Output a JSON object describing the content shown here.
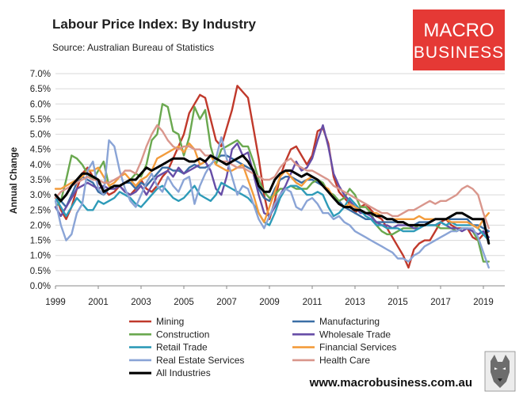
{
  "chart_data": {
    "type": "line",
    "title": "Labour Price Index: By Industry",
    "subtitle": "Source: Australian Bureau of Statistics",
    "ylabel": "Annual Change",
    "xlabel": "",
    "ylim": [
      0,
      7
    ],
    "xlim": [
      1999,
      2020
    ],
    "y_ticks": [
      "0.0%",
      "0.5%",
      "1.0%",
      "1.5%",
      "2.0%",
      "2.5%",
      "3.0%",
      "3.5%",
      "4.0%",
      "4.5%",
      "5.0%",
      "5.5%",
      "6.0%",
      "6.5%",
      "7.0%"
    ],
    "x_ticks": [
      "1999",
      "2001",
      "2003",
      "2005",
      "2007",
      "2009",
      "2011",
      "2013",
      "2015",
      "2017",
      "2019"
    ],
    "x_start": 1999.0,
    "x_step": 0.25,
    "series": [
      {
        "name": "Mining",
        "color": "#c0392b",
        "values": [
          3.0,
          2.5,
          2.2,
          2.6,
          3.2,
          3.7,
          3.9,
          3.6,
          3.4,
          3.2,
          3.0,
          3.1,
          3.3,
          3.1,
          3.0,
          3.2,
          3.5,
          3.2,
          3.1,
          3.3,
          3.6,
          3.8,
          4.2,
          4.6,
          5.0,
          5.7,
          6.0,
          6.3,
          6.2,
          5.5,
          4.8,
          4.6,
          5.2,
          5.8,
          6.6,
          6.4,
          6.2,
          5.2,
          4.2,
          3.0,
          2.2,
          2.8,
          3.6,
          4.1,
          4.5,
          4.6,
          4.3,
          4.0,
          4.3,
          5.1,
          5.2,
          4.7,
          3.6,
          3.1,
          2.9,
          2.7,
          2.4,
          2.6,
          2.7,
          2.5,
          2.3,
          2.2,
          1.9,
          1.6,
          1.3,
          1.0,
          0.6,
          1.2,
          1.4,
          1.5,
          1.5,
          1.8,
          2.1,
          2.2,
          2.0,
          1.9,
          1.9,
          1.9,
          1.6,
          1.5,
          1.7,
          1.8
        ]
      },
      {
        "name": "Manufacturing",
        "color": "#3a6ea5",
        "values": [
          2.9,
          2.8,
          2.6,
          3.0,
          3.4,
          3.6,
          3.5,
          3.4,
          3.1,
          3.0,
          3.2,
          3.3,
          3.3,
          3.4,
          3.4,
          3.2,
          3.4,
          3.3,
          3.5,
          3.7,
          3.9,
          3.9,
          3.8,
          3.8,
          3.7,
          3.9,
          4.0,
          3.9,
          3.9,
          4.0,
          4.2,
          4.3,
          4.3,
          4.2,
          4.1,
          4.0,
          3.9,
          3.8,
          3.2,
          2.9,
          2.8,
          3.2,
          3.5,
          3.6,
          3.6,
          3.5,
          3.4,
          3.5,
          3.5,
          3.4,
          3.3,
          3.1,
          2.9,
          2.8,
          2.6,
          2.5,
          2.4,
          2.3,
          2.2,
          2.2,
          2.1,
          2.1,
          2.1,
          2.1,
          2.1,
          2.1,
          2.0,
          2.0,
          2.1,
          2.1,
          2.1,
          2.2,
          2.2,
          2.2,
          2.2,
          2.2,
          2.2,
          2.2,
          2.0,
          2.0,
          1.9,
          1.8
        ]
      },
      {
        "name": "Construction",
        "color": "#6aa84f",
        "values": [
          2.6,
          2.8,
          3.5,
          4.3,
          4.2,
          4.0,
          3.7,
          3.5,
          3.8,
          4.1,
          3.3,
          3.2,
          3.3,
          3.4,
          3.5,
          3.7,
          3.6,
          4.0,
          4.8,
          5.0,
          6.0,
          5.9,
          5.1,
          5.0,
          4.3,
          4.9,
          5.9,
          5.5,
          5.8,
          4.6,
          4.0,
          4.5,
          4.6,
          4.7,
          4.8,
          4.6,
          4.6,
          4.1,
          3.5,
          3.1,
          2.9,
          3.0,
          3.2,
          3.2,
          3.3,
          3.2,
          3.2,
          3.2,
          3.4,
          3.5,
          3.4,
          3.1,
          3.0,
          2.8,
          2.9,
          3.2,
          3.0,
          2.6,
          2.6,
          2.4,
          2.0,
          1.8,
          1.7,
          1.7,
          1.8,
          1.9,
          1.9,
          1.9,
          2.0,
          2.0,
          2.0,
          2.0,
          1.9,
          1.9,
          1.9,
          1.8,
          1.9,
          1.9,
          1.8,
          1.5,
          0.8,
          0.8
        ]
      },
      {
        "name": "Wholesale Trade",
        "color": "#674ea7",
        "values": [
          2.6,
          2.3,
          2.6,
          2.9,
          3.2,
          3.3,
          3.4,
          3.3,
          3.2,
          3.3,
          3.2,
          3.2,
          3.3,
          3.1,
          3.0,
          3.1,
          3.3,
          3.0,
          3.3,
          3.6,
          3.7,
          3.8,
          3.6,
          3.9,
          3.7,
          3.8,
          3.9,
          4.0,
          4.1,
          3.8,
          3.2,
          3.0,
          3.6,
          4.5,
          4.7,
          4.3,
          4.4,
          3.7,
          3.0,
          2.4,
          2.3,
          2.6,
          3.0,
          3.3,
          3.7,
          4.1,
          3.8,
          3.9,
          4.2,
          4.8,
          5.3,
          4.6,
          3.7,
          3.3,
          3.0,
          2.8,
          2.6,
          2.4,
          2.4,
          2.3,
          2.1,
          2.0,
          2.0,
          1.9,
          2.0,
          2.0,
          2.0,
          1.9,
          1.9,
          2.0,
          2.0,
          2.0,
          2.1,
          2.0,
          1.9,
          1.9,
          1.8,
          1.9,
          1.8,
          1.7,
          1.8,
          1.6
        ]
      },
      {
        "name": "Retail Trade",
        "color": "#2e9bb8",
        "values": [
          2.9,
          2.6,
          2.3,
          2.6,
          2.9,
          2.7,
          2.5,
          2.5,
          2.8,
          2.7,
          2.8,
          2.9,
          3.1,
          3.0,
          2.9,
          2.7,
          2.6,
          2.8,
          3.0,
          3.2,
          3.3,
          3.1,
          2.9,
          2.8,
          2.9,
          3.1,
          3.3,
          3.0,
          2.9,
          2.8,
          3.0,
          3.4,
          3.3,
          3.2,
          3.1,
          3.0,
          2.9,
          2.7,
          2.4,
          2.1,
          2.0,
          2.4,
          2.9,
          3.2,
          3.3,
          3.3,
          3.2,
          3.0,
          3.0,
          3.1,
          3.0,
          2.6,
          2.3,
          2.4,
          2.6,
          2.9,
          2.7,
          2.5,
          2.3,
          2.2,
          2.0,
          2.0,
          1.9,
          1.9,
          1.9,
          1.8,
          1.8,
          1.8,
          1.9,
          2.0,
          2.0,
          2.0,
          2.1,
          2.0,
          2.1,
          2.0,
          2.0,
          2.0,
          2.0,
          1.9,
          1.7,
          1.5
        ]
      },
      {
        "name": "Financial Services",
        "color": "#f39c3c",
        "values": [
          3.2,
          3.2,
          3.3,
          3.4,
          3.5,
          3.6,
          3.8,
          3.8,
          3.9,
          3.6,
          3.3,
          3.4,
          3.6,
          3.7,
          3.5,
          3.3,
          3.5,
          3.6,
          3.8,
          4.2,
          4.3,
          4.4,
          4.5,
          4.6,
          4.4,
          4.7,
          4.5,
          4.0,
          4.1,
          4.3,
          4.0,
          3.9,
          3.8,
          3.8,
          3.9,
          4.0,
          3.5,
          3.0,
          2.4,
          2.1,
          2.6,
          3.1,
          3.6,
          3.8,
          3.6,
          3.4,
          3.3,
          3.5,
          3.6,
          3.5,
          3.3,
          3.2,
          2.9,
          2.7,
          2.6,
          2.7,
          2.6,
          2.5,
          2.4,
          2.4,
          2.4,
          2.3,
          2.2,
          2.2,
          2.2,
          2.2,
          2.2,
          2.2,
          2.3,
          2.2,
          2.2,
          2.2,
          2.2,
          2.2,
          2.1,
          2.1,
          2.1,
          2.1,
          2.0,
          1.9,
          2.2,
          2.4
        ]
      },
      {
        "name": "Real Estate Services",
        "color": "#8aa4d6",
        "values": [
          2.8,
          2.0,
          1.5,
          1.7,
          2.4,
          2.7,
          3.8,
          4.1,
          3.2,
          3.0,
          4.8,
          4.6,
          3.8,
          3.2,
          2.8,
          2.6,
          3.0,
          3.4,
          3.7,
          3.3,
          3.1,
          3.6,
          3.3,
          3.1,
          3.5,
          3.6,
          2.7,
          3.3,
          3.7,
          4.0,
          4.2,
          4.9,
          4.2,
          3.6,
          3.0,
          3.3,
          3.2,
          2.7,
          2.2,
          1.9,
          2.3,
          2.7,
          3.0,
          3.2,
          3.1,
          2.6,
          2.5,
          2.8,
          2.9,
          2.7,
          2.4,
          2.4,
          2.2,
          2.3,
          2.1,
          2.0,
          1.8,
          1.7,
          1.6,
          1.5,
          1.4,
          1.3,
          1.2,
          1.1,
          0.9,
          0.9,
          0.8,
          1.0,
          1.1,
          1.3,
          1.4,
          1.5,
          1.6,
          1.7,
          1.8,
          1.8,
          1.9,
          1.9,
          1.9,
          1.6,
          1.1,
          0.6
        ]
      },
      {
        "name": "Health Care",
        "color": "#d9968c",
        "values": [
          2.9,
          3.1,
          3.2,
          3.3,
          3.4,
          3.5,
          3.6,
          3.5,
          3.5,
          3.4,
          3.4,
          3.5,
          3.6,
          3.8,
          3.8,
          3.7,
          4.1,
          4.6,
          5.0,
          5.3,
          5.1,
          4.8,
          4.6,
          4.5,
          4.6,
          4.6,
          4.5,
          4.5,
          4.3,
          4.3,
          4.2,
          4.1,
          4.1,
          4.0,
          3.9,
          3.9,
          3.8,
          3.7,
          3.6,
          3.5,
          3.5,
          3.6,
          3.9,
          4.1,
          4.2,
          4.0,
          3.9,
          3.8,
          3.8,
          3.7,
          3.6,
          3.5,
          3.3,
          3.2,
          3.1,
          3.0,
          2.9,
          2.8,
          2.7,
          2.6,
          2.5,
          2.4,
          2.4,
          2.3,
          2.3,
          2.4,
          2.5,
          2.5,
          2.6,
          2.7,
          2.8,
          2.7,
          2.8,
          2.8,
          2.9,
          3.0,
          3.2,
          3.3,
          3.2,
          3.0,
          2.4,
          1.9
        ]
      },
      {
        "name": "All Industries",
        "color": "#000000",
        "values": [
          3.0,
          2.8,
          3.0,
          3.3,
          3.5,
          3.7,
          3.7,
          3.6,
          3.5,
          3.1,
          3.2,
          3.3,
          3.3,
          3.4,
          3.5,
          3.5,
          3.7,
          3.9,
          3.8,
          3.9,
          4.0,
          4.1,
          4.2,
          4.2,
          4.2,
          4.1,
          4.1,
          4.2,
          4.1,
          4.3,
          4.2,
          4.1,
          4.0,
          4.1,
          4.2,
          4.3,
          4.1,
          3.8,
          3.3,
          3.1,
          3.1,
          3.5,
          3.7,
          3.8,
          3.8,
          3.7,
          3.6,
          3.7,
          3.6,
          3.5,
          3.3,
          3.1,
          2.9,
          2.7,
          2.6,
          2.6,
          2.5,
          2.5,
          2.4,
          2.4,
          2.3,
          2.3,
          2.2,
          2.2,
          2.1,
          2.1,
          2.0,
          2.0,
          2.0,
          2.0,
          2.1,
          2.2,
          2.2,
          2.2,
          2.3,
          2.4,
          2.4,
          2.3,
          2.2,
          2.2,
          2.2,
          1.4
        ]
      }
    ]
  },
  "branding": {
    "logo_line1": "MACRO",
    "logo_line2": "BUSINESS",
    "logo_color": "#e53935",
    "website": "www.macrobusiness.com.au",
    "mascot": "wolf-icon"
  }
}
